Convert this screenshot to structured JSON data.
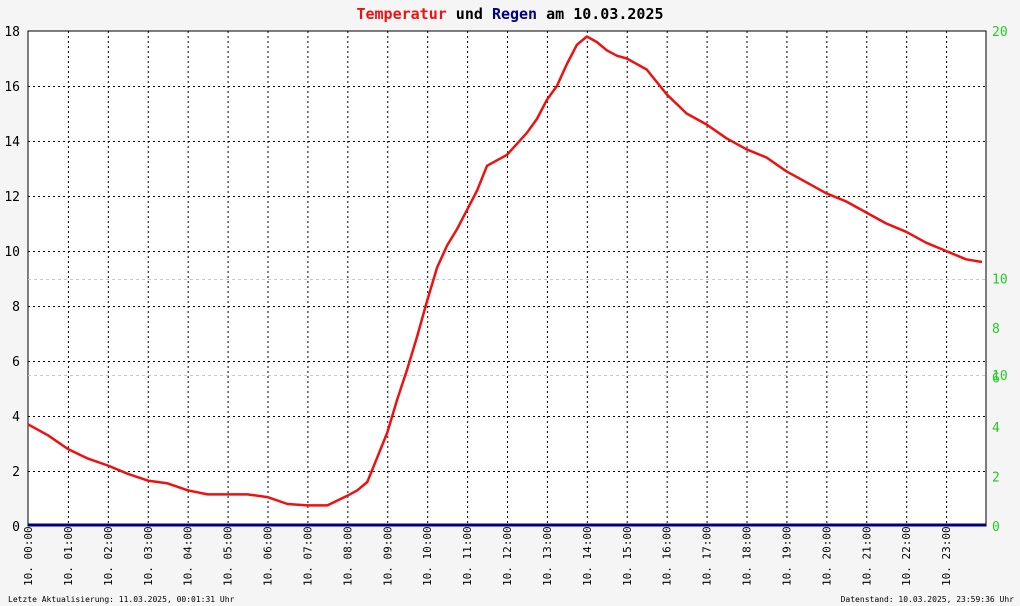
{
  "title": {
    "part1": "Temperatur",
    "part2": " und ",
    "part3": "Regen",
    "part4": " am 10.03.2025"
  },
  "colors": {
    "temperature": "#ee1111",
    "rain": "#000080",
    "right_axis": "#22cc22",
    "title_mid": "#000000"
  },
  "footer": {
    "left": "Letzte Aktualisierung: 11.03.2025, 00:01:31 Uhr",
    "right": "Datenstand: 10.03.2025, 23:59:36 Uhr"
  },
  "chart_data": {
    "type": "line",
    "xlabel": "",
    "ylabel": "",
    "x_ticks": [
      "10. 00:00",
      "10. 01:00",
      "10. 02:00",
      "10. 03:00",
      "10. 04:00",
      "10. 05:00",
      "10. 06:00",
      "10. 07:00",
      "10. 08:00",
      "10. 09:00",
      "10. 10:00",
      "10. 11:00",
      "10. 12:00",
      "10. 13:00",
      "10. 14:00",
      "10. 15:00",
      "10. 16:00",
      "10. 17:00",
      "10. 18:00",
      "10. 19:00",
      "10. 20:00",
      "10. 21:00",
      "10. 22:00",
      "10. 23:00"
    ],
    "xlim": [
      0,
      24
    ],
    "y_left": {
      "ylim": [
        0,
        18
      ],
      "ticks": [
        "0",
        "2",
        "4",
        "6",
        "8",
        "10",
        "12",
        "14",
        "16",
        "18"
      ]
    },
    "y_right": {
      "ylim": [
        0,
        20
      ],
      "ticks": [
        "0",
        "2",
        "4",
        "6",
        "8",
        "10",
        "10",
        "20"
      ]
    },
    "grid": true,
    "series": [
      {
        "x": [
          0,
          0.5,
          1,
          1.5,
          2,
          2.5,
          3,
          3.5,
          4,
          4.5,
          5,
          5.5,
          6,
          6.5,
          7,
          7.5,
          8,
          8.25,
          8.5,
          8.75,
          9,
          9.25,
          9.5,
          9.75,
          10,
          10.25,
          10.5,
          10.75,
          11,
          11.25,
          11.5,
          11.75,
          12,
          12.25,
          12.5,
          12.75,
          13,
          13.25,
          13.5,
          13.75,
          14,
          14.25,
          14.5,
          14.75,
          15,
          15.5,
          16,
          16.5,
          17,
          17.5,
          18,
          18.5,
          19,
          19.5,
          20,
          20.5,
          21,
          21.5,
          22,
          22.5,
          23,
          23.5,
          23.9
        ],
        "values": [
          3.7,
          3.3,
          2.8,
          2.45,
          2.2,
          1.9,
          1.65,
          1.55,
          1.3,
          1.15,
          1.15,
          1.15,
          1.05,
          0.8,
          0.75,
          0.75,
          1.1,
          1.3,
          1.6,
          2.5,
          3.4,
          4.6,
          5.7,
          6.9,
          8.2,
          9.4,
          10.2,
          10.8,
          11.5,
          12.2,
          13.1,
          13.3,
          13.5,
          13.9,
          14.3,
          14.8,
          15.5,
          16.0,
          16.8,
          17.5,
          17.8,
          17.6,
          17.3,
          17.1,
          17.0,
          16.6,
          15.7,
          15.0,
          14.6,
          14.1,
          13.7,
          13.4,
          12.9,
          12.5,
          12.1,
          11.8,
          11.4,
          11.0,
          10.7,
          10.3,
          10.0,
          9.7,
          9.6
        ]
      },
      {
        "x": [
          0,
          24
        ],
        "values": [
          0,
          0
        ]
      }
    ]
  }
}
